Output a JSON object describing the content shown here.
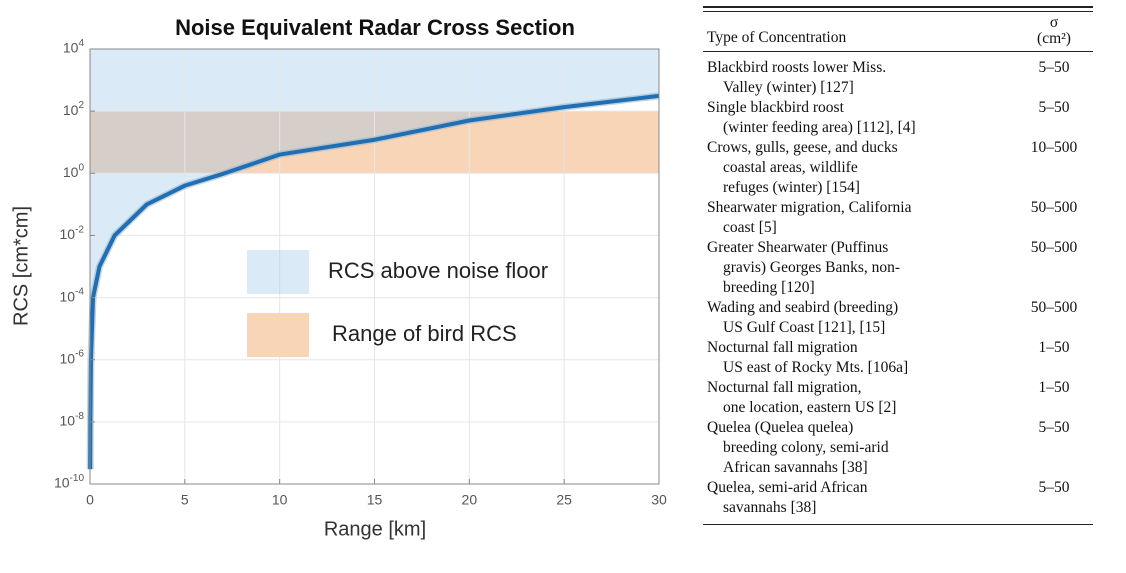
{
  "chart_data": {
    "type": "line",
    "title": "Noise Equivalent Radar Cross Section",
    "x_label": "Range [km]",
    "y_label": "RCS [cm*cm]",
    "x": [
      0.01,
      0.02,
      0.05,
      0.16,
      0.5,
      1.3,
      3,
      5,
      7.1,
      10,
      15,
      20,
      25,
      30
    ],
    "values": [
      3e-10,
      1e-08,
      1e-06,
      0.0001,
      0.001,
      0.01,
      0.1,
      0.4,
      1,
      4,
      12,
      50,
      135,
      310
    ],
    "color": "#1f6fb5",
    "log_y": true,
    "grid": true,
    "xlim": [
      0,
      30
    ],
    "xticks": [
      0,
      5,
      10,
      15,
      20,
      25,
      30
    ],
    "ylim": [
      1e-10,
      10000
    ],
    "yticks": [
      {
        "value": 1e-10,
        "label": "10^-10"
      },
      {
        "value": 1e-08,
        "label": "10^-8"
      },
      {
        "value": 1e-06,
        "label": "10^-6"
      },
      {
        "value": 0.0001,
        "label": "10^-4"
      },
      {
        "value": 0.01,
        "label": "10^-2"
      },
      {
        "value": 1,
        "label": "10^0"
      },
      {
        "value": 100,
        "label": "10^2"
      },
      {
        "value": 10000,
        "label": "10^4"
      }
    ],
    "bird_range": [
      1,
      100
    ],
    "legend": [
      {
        "label": "RCS above noise floor",
        "color": "#96c3e6"
      },
      {
        "label": "Range of bird RCS",
        "color": "#f9d5b8"
      }
    ]
  },
  "table": {
    "columns": [
      [
        "Type of Concentration"
      ],
      [
        "σ",
        "(cm²)"
      ]
    ],
    "rows": [
      [
        [
          "Blackbird roosts lower Miss.",
          "Valley (winter) [127]"
        ],
        "5–50"
      ],
      [
        [
          "Single blackbird roost",
          "(winter feeding area) [112], [4]"
        ],
        "5–50"
      ],
      [
        [
          "Crows, gulls, geese, and ducks",
          "coastal areas, wildlife",
          "refuges (winter) [154]"
        ],
        "10–500"
      ],
      [
        [
          "Shearwater migration, California",
          "coast [5]"
        ],
        "50–500"
      ],
      [
        [
          "Greater Shearwater (Puffinus",
          "gravis) Georges Banks, non-",
          "breeding [120]"
        ],
        "50–500"
      ],
      [
        [
          "Wading and seabird (breeding)",
          "US Gulf Coast [121], [15]"
        ],
        "50–500"
      ],
      [
        [
          "Nocturnal fall migration",
          "US east of Rocky Mts. [106a]"
        ],
        "1–50"
      ],
      [
        [
          "Nocturnal fall migration,",
          "one location, eastern US [2]"
        ],
        "1–50"
      ],
      [
        [
          "Quelea (Quelea quelea)",
          "breeding colony, semi-arid",
          "African savannahs [38]"
        ],
        "5–50"
      ],
      [
        [
          "Quelea, semi-arid African",
          "savannahs [38]"
        ],
        "5–50"
      ]
    ]
  }
}
